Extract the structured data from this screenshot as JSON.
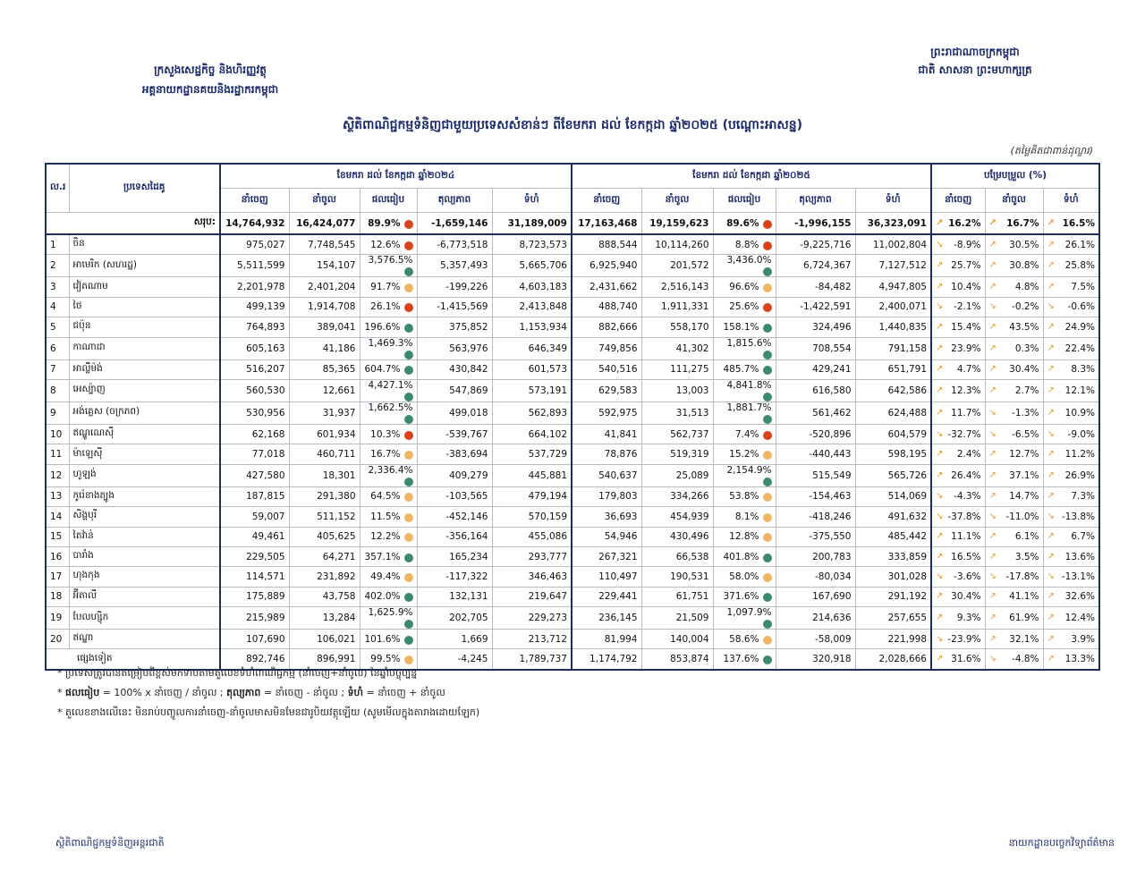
{
  "header": {
    "ministry": "ក្រសួងសេដ្ឋកិច្ច និងហិរញ្ញវត្ថុ",
    "department": "អគ្គនាយកដ្ឋានគយនិងរដ្ឋាករកម្ពុជា",
    "kingdom": "ព្រះរាជាណាចក្រកម្ពុជា",
    "motto": "ជាតិ សាសនា ព្រះមហាក្សត្រ"
  },
  "title": "ស្ថិតិពាណិជ្ជកម្មទំនិញជាមួយប្រទេសសំខាន់ៗ ពីខែមករា ដល់ ខែកក្កដា ឆ្នាំ២០២៥ (បណ្ដោះអាសន្ន)",
  "unit_note": "(តម្លៃគិតជាពាន់ដុល្លារ)",
  "dot_colors": {
    "r": "#d8431b",
    "o": "#efb765",
    "g": "#3b8a70"
  },
  "table": {
    "col_no": "ល.រ",
    "col_country": "ប្រទេសដៃគូ",
    "period_2024": "ខែមករា ដល់ ខែកក្កដា ឆ្នាំ២០២៤",
    "period_2025": "ខែមករា ដល់ ខែកក្កដា ឆ្នាំ២០២៥",
    "change": "បម្រែបម្រួល (%)",
    "subheaders": [
      "នាំចេញ",
      "នាំចូល",
      "ផលធៀប",
      "តុល្យភាព",
      "ទំហំ",
      "នាំចេញ",
      "នាំចូល",
      "ផលធៀប",
      "តុល្យភាព",
      "ទំហំ",
      "នាំចេញ",
      "នាំចូល",
      "ទំហំ"
    ],
    "total": {
      "label": "សរុប:",
      "cells": [
        "14,764,932",
        "16,424,077",
        "89.9%",
        "-1,659,146",
        "31,189,009",
        "17,163,468",
        "19,159,623",
        "89.6%",
        "-1,996,155",
        "36,323,091",
        "16.2%",
        "16.7%",
        "16.5%"
      ],
      "dots": [
        "r",
        "r"
      ]
    },
    "rows": [
      {
        "no": "1",
        "country": "ចិន",
        "cells": [
          "975,027",
          "7,748,545",
          "12.6%",
          "-6,773,518",
          "8,723,573",
          "888,544",
          "10,114,260",
          "8.8%",
          "-9,225,716",
          "11,002,804",
          "-8.9%",
          "30.5%",
          "26.1%"
        ],
        "dots": [
          "r",
          "r"
        ]
      },
      {
        "no": "2",
        "country": "អាមេរិក (សហរដ្ឋ)",
        "cells": [
          "5,511,599",
          "154,107",
          "3,576.5%",
          "5,357,493",
          "5,665,706",
          "6,925,940",
          "201,572",
          "3,436.0%",
          "6,724,367",
          "7,127,512",
          "25.7%",
          "30.8%",
          "25.8%"
        ],
        "dots": [
          "g",
          "g"
        ]
      },
      {
        "no": "3",
        "country": "វៀតណាម",
        "cells": [
          "2,201,978",
          "2,401,204",
          "91.7%",
          "-199,226",
          "4,603,183",
          "2,431,662",
          "2,516,143",
          "96.6%",
          "-84,482",
          "4,947,805",
          "10.4%",
          "4.8%",
          "7.5%"
        ],
        "dots": [
          "o",
          "o"
        ]
      },
      {
        "no": "4",
        "country": "ថៃ",
        "cells": [
          "499,139",
          "1,914,708",
          "26.1%",
          "-1,415,569",
          "2,413,848",
          "488,740",
          "1,911,331",
          "25.6%",
          "-1,422,591",
          "2,400,071",
          "-2.1%",
          "-0.2%",
          "-0.6%"
        ],
        "dots": [
          "r",
          "r"
        ]
      },
      {
        "no": "5",
        "country": "ជប៉ុន",
        "cells": [
          "764,893",
          "389,041",
          "196.6%",
          "375,852",
          "1,153,934",
          "882,666",
          "558,170",
          "158.1%",
          "324,496",
          "1,440,835",
          "15.4%",
          "43.5%",
          "24.9%"
        ],
        "dots": [
          "g",
          "g"
        ]
      },
      {
        "no": "6",
        "country": "កាណាដា",
        "cells": [
          "605,163",
          "41,186",
          "1,469.3%",
          "563,976",
          "646,349",
          "749,856",
          "41,302",
          "1,815.6%",
          "708,554",
          "791,158",
          "23.9%",
          "0.3%",
          "22.4%"
        ],
        "dots": [
          "g",
          "g"
        ]
      },
      {
        "no": "7",
        "country": "អាល្លឺម៉ង់",
        "cells": [
          "516,207",
          "85,365",
          "604.7%",
          "430,842",
          "601,573",
          "540,516",
          "111,275",
          "485.7%",
          "429,241",
          "651,791",
          "4.7%",
          "30.4%",
          "8.3%"
        ],
        "dots": [
          "g",
          "g"
        ]
      },
      {
        "no": "8",
        "country": "អេស្ប៉ាញ",
        "cells": [
          "560,530",
          "12,661",
          "4,427.1%",
          "547,869",
          "573,191",
          "629,583",
          "13,003",
          "4,841.8%",
          "616,580",
          "642,586",
          "12.3%",
          "2.7%",
          "12.1%"
        ],
        "dots": [
          "g",
          "g"
        ]
      },
      {
        "no": "9",
        "country": "អង់គ្លេស (ចក្រភព)",
        "cells": [
          "530,956",
          "31,937",
          "1,662.5%",
          "499,018",
          "562,893",
          "592,975",
          "31,513",
          "1,881.7%",
          "561,462",
          "624,488",
          "11.7%",
          "-1.3%",
          "10.9%"
        ],
        "dots": [
          "g",
          "g"
        ]
      },
      {
        "no": "10",
        "country": "ឥណ្ឌូណេស៊ី",
        "cells": [
          "62,168",
          "601,934",
          "10.3%",
          "-539,767",
          "664,102",
          "41,841",
          "562,737",
          "7.4%",
          "-520,896",
          "604,579",
          "-32.7%",
          "-6.5%",
          "-9.0%"
        ],
        "dots": [
          "r",
          "r"
        ]
      },
      {
        "no": "11",
        "country": "ម៉ាឡេស៊ី",
        "cells": [
          "77,018",
          "460,711",
          "16.7%",
          "-383,694",
          "537,729",
          "78,876",
          "519,319",
          "15.2%",
          "-440,443",
          "598,195",
          "2.4%",
          "12.7%",
          "11.2%"
        ],
        "dots": [
          "o",
          "o"
        ]
      },
      {
        "no": "12",
        "country": "ហូឡង់",
        "cells": [
          "427,580",
          "18,301",
          "2,336.4%",
          "409,279",
          "445,881",
          "540,637",
          "25,089",
          "2,154.9%",
          "515,549",
          "565,726",
          "26.4%",
          "37.1%",
          "26.9%"
        ],
        "dots": [
          "g",
          "g"
        ]
      },
      {
        "no": "13",
        "country": "កូរ៉េខាងត្បូង",
        "cells": [
          "187,815",
          "291,380",
          "64.5%",
          "-103,565",
          "479,194",
          "179,803",
          "334,266",
          "53.8%",
          "-154,463",
          "514,069",
          "-4.3%",
          "14.7%",
          "7.3%"
        ],
        "dots": [
          "o",
          "o"
        ]
      },
      {
        "no": "14",
        "country": "សិង្ហបុរី",
        "cells": [
          "59,007",
          "511,152",
          "11.5%",
          "-452,146",
          "570,159",
          "36,693",
          "454,939",
          "8.1%",
          "-418,246",
          "491,632",
          "-37.8%",
          "-11.0%",
          "-13.8%"
        ],
        "dots": [
          "o",
          "o"
        ]
      },
      {
        "no": "15",
        "country": "តៃវ៉ាន់",
        "cells": [
          "49,461",
          "405,625",
          "12.2%",
          "-356,164",
          "455,086",
          "54,946",
          "430,496",
          "12.8%",
          "-375,550",
          "485,442",
          "11.1%",
          "6.1%",
          "6.7%"
        ],
        "dots": [
          "o",
          "o"
        ]
      },
      {
        "no": "16",
        "country": "បារាំង",
        "cells": [
          "229,505",
          "64,271",
          "357.1%",
          "165,234",
          "293,777",
          "267,321",
          "66,538",
          "401.8%",
          "200,783",
          "333,859",
          "16.5%",
          "3.5%",
          "13.6%"
        ],
        "dots": [
          "g",
          "g"
        ]
      },
      {
        "no": "17",
        "country": "ហុងកុង",
        "cells": [
          "114,571",
          "231,892",
          "49.4%",
          "-117,322",
          "346,463",
          "110,497",
          "190,531",
          "58.0%",
          "-80,034",
          "301,028",
          "-3.6%",
          "-17.8%",
          "-13.1%"
        ],
        "dots": [
          "o",
          "o"
        ]
      },
      {
        "no": "18",
        "country": "អ៊ីតាលី",
        "cells": [
          "175,889",
          "43,758",
          "402.0%",
          "132,131",
          "219,647",
          "229,441",
          "61,751",
          "371.6%",
          "167,690",
          "291,192",
          "30.4%",
          "41.1%",
          "32.6%"
        ],
        "dots": [
          "g",
          "g"
        ]
      },
      {
        "no": "19",
        "country": "បែលហ្ស៊ិក",
        "cells": [
          "215,989",
          "13,284",
          "1,625.9%",
          "202,705",
          "229,273",
          "236,145",
          "21,509",
          "1,097.9%",
          "214,636",
          "257,655",
          "9.3%",
          "61.9%",
          "12.4%"
        ],
        "dots": [
          "g",
          "g"
        ]
      },
      {
        "no": "20",
        "country": "ឥណ្ឌា",
        "cells": [
          "107,690",
          "106,021",
          "101.6%",
          "1,669",
          "213,712",
          "81,994",
          "140,004",
          "58.6%",
          "-58,009",
          "221,998",
          "-23.9%",
          "32.1%",
          "3.9%"
        ],
        "dots": [
          "g",
          "o"
        ]
      },
      {
        "country": "ផ្សេងទៀត",
        "cells": [
          "892,746",
          "896,991",
          "99.5%",
          "-4,245",
          "1,789,737",
          "1,174,792",
          "853,874",
          "137.6%",
          "320,918",
          "2,028,666",
          "31.6%",
          "-4.8%",
          "13.3%"
        ],
        "dots": [
          "o",
          "g"
        ]
      }
    ]
  },
  "notes": [
    [
      "* ប្រទេសត្រូវបានតម្រៀបពីខ្ពស់មកទាបតាមតួលេខទំហំពាណិជ្ជកម្ម (នាំចេញ+នាំចូល) នៃឆ្នាំបច្ចុប្បន្ន"
    ],
    [
      "* ",
      "ផលធៀប",
      " = 100% x នាំចេញ / នាំចូល ; ",
      "តុល្យភាព",
      " = នាំចេញ - នាំចូល ; ",
      "ទំហំ",
      " = នាំចេញ + នាំចូល"
    ],
    [
      "* តួលេខខាងលើនេះ មិនរាប់បញ្ចូលការនាំចេញ-នាំចូលមាសមិនមែនជារូបិយវត្ថុឡើយ (សូមមើលក្នុងតារាងដោយឡែក)"
    ]
  ],
  "footer": {
    "left": "ស្ថិតិពាណិជ្ជកម្មទំនិញអន្តរជាតិ",
    "right": "នាយកដ្ឋានបច្ចេកវិទ្យាព័ត៌មាន"
  }
}
